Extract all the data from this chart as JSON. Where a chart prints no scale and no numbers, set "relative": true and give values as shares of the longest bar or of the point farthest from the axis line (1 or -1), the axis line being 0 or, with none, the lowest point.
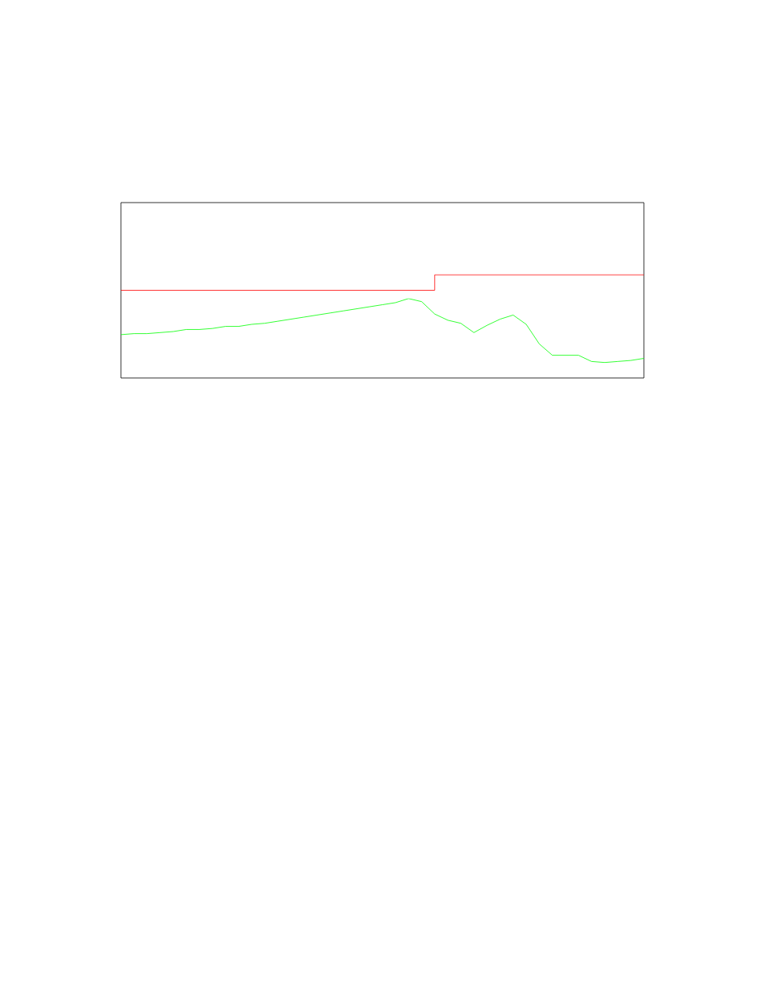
{
  "chart_data": {
    "type": "line",
    "relative": true,
    "categories": [
      null,
      null,
      null,
      null,
      null,
      null,
      null,
      null,
      null,
      null,
      null,
      null,
      null,
      null,
      null,
      null,
      null,
      null,
      null,
      null,
      null,
      null,
      null,
      null,
      null,
      null,
      null,
      null,
      null,
      null,
      null,
      null,
      null,
      null,
      null,
      null,
      null,
      null,
      null,
      null,
      null
    ],
    "series": [
      {
        "color": "#00ff00",
        "values": [
          0.42,
          0.43,
          0.43,
          0.44,
          0.45,
          0.47,
          0.47,
          0.48,
          0.5,
          0.5,
          0.52,
          0.53,
          0.55,
          0.57,
          0.59,
          0.61,
          0.63,
          0.65,
          0.67,
          0.69,
          0.71,
          0.73,
          0.77,
          0.74,
          0.62,
          0.56,
          0.53,
          0.44,
          0.51,
          0.57,
          0.61,
          0.52,
          0.33,
          0.22,
          0.22,
          0.22,
          0.16,
          0.15,
          0.16,
          0.17,
          0.19
        ]
      },
      {
        "type": "step",
        "color": "#ff0000",
        "values": [
          0.85,
          0.85,
          0.85,
          0.85,
          0.85,
          0.85,
          0.85,
          0.85,
          0.85,
          0.85,
          0.85,
          0.85,
          0.85,
          0.85,
          0.85,
          0.85,
          0.85,
          0.85,
          0.85,
          0.85,
          0.85,
          0.85,
          0.85,
          0.85,
          1,
          1,
          1,
          1,
          1,
          1,
          1,
          1,
          1,
          1,
          1,
          1,
          1,
          1,
          1,
          1,
          1
        ]
      }
    ]
  }
}
